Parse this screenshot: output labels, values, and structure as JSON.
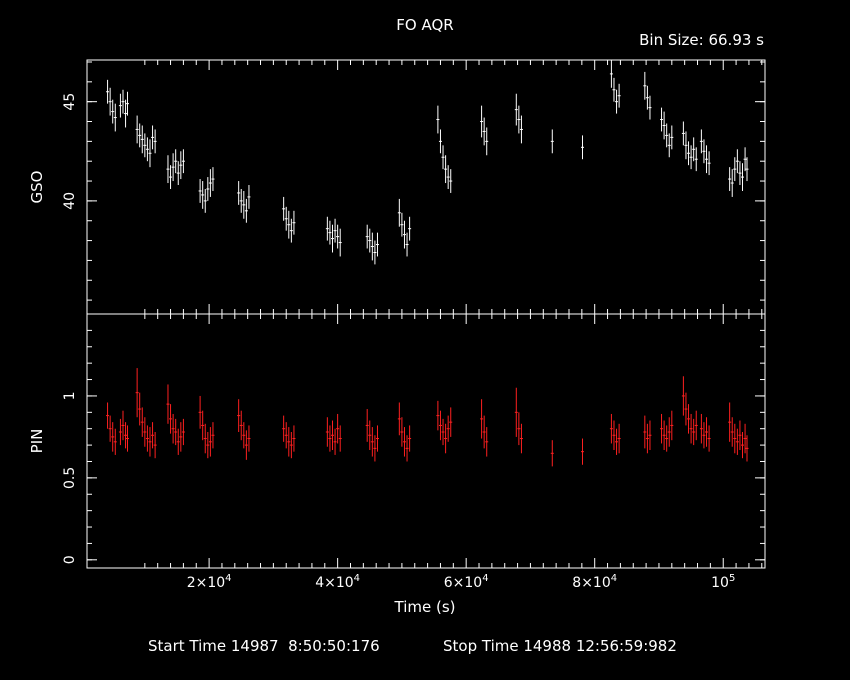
{
  "title": "FO AQR",
  "bin_size": "Bin Size: 66.93 s",
  "footer": {
    "start": "Start Time 14987  8:50:50:176",
    "stop": "Stop Time 14988 12:56:59:982"
  },
  "colors": {
    "gso": "#ffffff",
    "pin": "#ff2020",
    "axes": "#ffffff",
    "background": "#000000"
  },
  "chart_data": [
    {
      "type": "scatter",
      "panel": "top",
      "ylabel": "GSO",
      "xlabel": "Time (s)",
      "xlim": [
        1000,
        106500
      ],
      "ylim": [
        34.3,
        47.1
      ],
      "yticks": [
        40,
        45
      ],
      "ytick_labels": [
        "40",
        "45"
      ],
      "series": [
        {
          "points": [
            [
              4200,
              45.5
            ],
            [
              4600,
              45.0
            ],
            [
              5000,
              44.5
            ],
            [
              5400,
              44.2
            ],
            [
              6200,
              44.8
            ],
            [
              6600,
              45.0
            ],
            [
              7000,
              44.4
            ],
            [
              7300,
              44.9
            ],
            [
              8800,
              43.6
            ],
            [
              9200,
              43.3
            ],
            [
              9600,
              43.1
            ],
            [
              10000,
              42.8
            ],
            [
              10400,
              42.6
            ],
            [
              10800,
              42.4
            ],
            [
              11200,
              43.2
            ],
            [
              11600,
              43.0
            ],
            [
              13600,
              41.6
            ],
            [
              14000,
              41.2
            ],
            [
              14400,
              41.7
            ],
            [
              14800,
              42.0
            ],
            [
              15200,
              41.4
            ],
            [
              15600,
              41.8
            ],
            [
              16000,
              42.0
            ],
            [
              18600,
              40.5
            ],
            [
              19000,
              40.3
            ],
            [
              19400,
              40.0
            ],
            [
              19800,
              40.6
            ],
            [
              20200,
              40.9
            ],
            [
              20600,
              41.1
            ],
            [
              24600,
              40.4
            ],
            [
              25000,
              40.0
            ],
            [
              25400,
              39.8
            ],
            [
              25800,
              39.5
            ],
            [
              26200,
              40.2
            ],
            [
              31600,
              39.6
            ],
            [
              32000,
              39.1
            ],
            [
              32400,
              38.8
            ],
            [
              32800,
              38.5
            ],
            [
              33200,
              38.9
            ],
            [
              38400,
              38.6
            ],
            [
              38800,
              38.4
            ],
            [
              39200,
              38.1
            ],
            [
              39600,
              38.5
            ],
            [
              40000,
              38.2
            ],
            [
              40400,
              37.9
            ],
            [
              44600,
              38.2
            ],
            [
              45000,
              38.0
            ],
            [
              45400,
              37.7
            ],
            [
              45800,
              37.4
            ],
            [
              46200,
              37.8
            ],
            [
              49600,
              39.4
            ],
            [
              50000,
              38.8
            ],
            [
              50400,
              38.3
            ],
            [
              50800,
              37.8
            ],
            [
              51200,
              38.6
            ],
            [
              55600,
              44.1
            ],
            [
              56000,
              43.0
            ],
            [
              56400,
              42.2
            ],
            [
              56800,
              41.6
            ],
            [
              57200,
              41.2
            ],
            [
              57600,
              41.0
            ],
            [
              62400,
              44.0
            ],
            [
              62800,
              43.5
            ],
            [
              63200,
              43.0
            ],
            [
              67800,
              44.6
            ],
            [
              68200,
              44.1
            ],
            [
              68600,
              43.6
            ],
            [
              73400,
              43.0
            ],
            [
              78100,
              42.7
            ],
            [
              82600,
              46.4
            ],
            [
              83000,
              45.6
            ],
            [
              83400,
              45.0
            ],
            [
              83800,
              45.3
            ],
            [
              87800,
              45.8
            ],
            [
              88200,
              45.2
            ],
            [
              88600,
              44.7
            ],
            [
              90400,
              44.1
            ],
            [
              90800,
              43.8
            ],
            [
              91200,
              43.3
            ],
            [
              91600,
              42.8
            ],
            [
              92000,
              43.2
            ],
            [
              93800,
              43.4
            ],
            [
              94200,
              42.8
            ],
            [
              94600,
              42.4
            ],
            [
              95000,
              42.2
            ],
            [
              95400,
              42.6
            ],
            [
              95800,
              42.1
            ],
            [
              96600,
              43.0
            ],
            [
              97000,
              42.5
            ],
            [
              97400,
              42.1
            ],
            [
              97800,
              41.9
            ],
            [
              101000,
              41.1
            ],
            [
              101400,
              40.9
            ],
            [
              101800,
              41.6
            ],
            [
              102200,
              42.0
            ],
            [
              102600,
              41.4
            ],
            [
              103000,
              41.2
            ],
            [
              103400,
              42.1
            ],
            [
              103700,
              41.6
            ]
          ],
          "errors": [
            0.6,
            0.7,
            0.6,
            0.7,
            0.6,
            0.6,
            0.7,
            0.6,
            0.7,
            0.6,
            0.7,
            0.6,
            0.6,
            0.7,
            0.6,
            0.6,
            0.7,
            0.6,
            0.7,
            0.6,
            0.6,
            0.7,
            0.6,
            0.6,
            0.7,
            0.6,
            0.6,
            0.7,
            0.6,
            0.6,
            0.6,
            0.7,
            0.6,
            0.6,
            0.6,
            0.6,
            0.7,
            0.6,
            0.6,
            0.6,
            0.6,
            0.7,
            0.6,
            0.6,
            0.7,
            0.6,
            0.6,
            0.7,
            0.6,
            0.6,
            0.7,
            0.6,
            0.7,
            0.6,
            0.6,
            0.7,
            0.6,
            0.6,
            0.7,
            0.6,
            0.6,
            0.8,
            0.7,
            0.7,
            0.8,
            0.7,
            0.7,
            0.6,
            0.6,
            0.7,
            0.6,
            0.6,
            0.6,
            0.7,
            0.6,
            0.6,
            0.6,
            0.7,
            0.6,
            0.6,
            0.6,
            0.6,
            0.7,
            0.6,
            0.6,
            0.6,
            0.6,
            0.6,
            0.6,
            0.7,
            0.6,
            0.6,
            0.7,
            0.6,
            0.6,
            0.6,
            0.7,
            0.6,
            0.6
          ]
        }
      ]
    },
    {
      "type": "scatter",
      "panel": "bottom",
      "ylabel": "PIN",
      "xlabel": "Time (s)",
      "xlim": [
        1000,
        106500
      ],
      "ylim": [
        -0.05,
        1.5
      ],
      "yticks": [
        0,
        0.5,
        1
      ],
      "ytick_labels": [
        "0",
        "0.5",
        "1"
      ],
      "xticks": [
        20000,
        40000,
        60000,
        80000,
        100000
      ],
      "xtick_labels": [
        [
          "2×10",
          "4"
        ],
        [
          "4×10",
          "4"
        ],
        [
          "6×10",
          "4"
        ],
        [
          "8×10",
          "4"
        ],
        [
          "10",
          "5"
        ]
      ],
      "series": [
        {
          "points": [
            [
              4200,
              0.88
            ],
            [
              4600,
              0.8
            ],
            [
              5000,
              0.75
            ],
            [
              5400,
              0.72
            ],
            [
              6200,
              0.78
            ],
            [
              6600,
              0.82
            ],
            [
              7000,
              0.76
            ],
            [
              7300,
              0.74
            ],
            [
              8800,
              1.02
            ],
            [
              9200,
              0.92
            ],
            [
              9600,
              0.84
            ],
            [
              10000,
              0.78
            ],
            [
              10400,
              0.74
            ],
            [
              10800,
              0.72
            ],
            [
              11200,
              0.76
            ],
            [
              11600,
              0.7
            ],
            [
              13600,
              0.95
            ],
            [
              14000,
              0.86
            ],
            [
              14400,
              0.8
            ],
            [
              14800,
              0.78
            ],
            [
              15200,
              0.72
            ],
            [
              15600,
              0.75
            ],
            [
              16000,
              0.78
            ],
            [
              18600,
              0.9
            ],
            [
              19000,
              0.82
            ],
            [
              19400,
              0.74
            ],
            [
              19800,
              0.7
            ],
            [
              20200,
              0.72
            ],
            [
              20600,
              0.76
            ],
            [
              24600,
              0.88
            ],
            [
              25000,
              0.82
            ],
            [
              25400,
              0.76
            ],
            [
              25800,
              0.7
            ],
            [
              26200,
              0.74
            ],
            [
              31600,
              0.8
            ],
            [
              32000,
              0.76
            ],
            [
              32400,
              0.72
            ],
            [
              32800,
              0.7
            ],
            [
              33200,
              0.74
            ],
            [
              38400,
              0.78
            ],
            [
              38800,
              0.74
            ],
            [
              39200,
              0.76
            ],
            [
              39600,
              0.72
            ],
            [
              40000,
              0.8
            ],
            [
              40400,
              0.74
            ],
            [
              44600,
              0.82
            ],
            [
              45000,
              0.76
            ],
            [
              45400,
              0.72
            ],
            [
              45800,
              0.68
            ],
            [
              46200,
              0.74
            ],
            [
              49600,
              0.86
            ],
            [
              50000,
              0.78
            ],
            [
              50400,
              0.72
            ],
            [
              50800,
              0.68
            ],
            [
              51200,
              0.74
            ],
            [
              55600,
              0.88
            ],
            [
              56000,
              0.82
            ],
            [
              56400,
              0.78
            ],
            [
              56800,
              0.74
            ],
            [
              57200,
              0.8
            ],
            [
              57600,
              0.84
            ],
            [
              62400,
              0.86
            ],
            [
              62800,
              0.78
            ],
            [
              63200,
              0.72
            ],
            [
              67800,
              0.9
            ],
            [
              68200,
              0.8
            ],
            [
              68600,
              0.74
            ],
            [
              73400,
              0.65
            ],
            [
              78100,
              0.66
            ],
            [
              82600,
              0.8
            ],
            [
              83000,
              0.76
            ],
            [
              83400,
              0.72
            ],
            [
              83800,
              0.74
            ],
            [
              87800,
              0.78
            ],
            [
              88200,
              0.74
            ],
            [
              88600,
              0.76
            ],
            [
              90400,
              0.8
            ],
            [
              90800,
              0.76
            ],
            [
              91200,
              0.74
            ],
            [
              91600,
              0.78
            ],
            [
              92000,
              0.82
            ],
            [
              93800,
              1.0
            ],
            [
              94200,
              0.92
            ],
            [
              94600,
              0.86
            ],
            [
              95000,
              0.8
            ],
            [
              95400,
              0.78
            ],
            [
              95800,
              0.82
            ],
            [
              96600,
              0.8
            ],
            [
              97000,
              0.76
            ],
            [
              97400,
              0.78
            ],
            [
              97800,
              0.74
            ],
            [
              101000,
              0.84
            ],
            [
              101400,
              0.78
            ],
            [
              101800,
              0.74
            ],
            [
              102200,
              0.72
            ],
            [
              102600,
              0.76
            ],
            [
              103000,
              0.7
            ],
            [
              103400,
              0.74
            ],
            [
              103700,
              0.68
            ]
          ],
          "errors": [
            0.08,
            0.08,
            0.09,
            0.08,
            0.08,
            0.09,
            0.08,
            0.08,
            0.15,
            0.1,
            0.09,
            0.09,
            0.08,
            0.09,
            0.08,
            0.08,
            0.12,
            0.09,
            0.09,
            0.08,
            0.08,
            0.09,
            0.08,
            0.1,
            0.09,
            0.09,
            0.08,
            0.09,
            0.08,
            0.1,
            0.09,
            0.08,
            0.09,
            0.08,
            0.08,
            0.08,
            0.09,
            0.08,
            0.08,
            0.09,
            0.08,
            0.09,
            0.08,
            0.09,
            0.08,
            0.1,
            0.09,
            0.09,
            0.08,
            0.08,
            0.1,
            0.09,
            0.09,
            0.08,
            0.08,
            0.09,
            0.09,
            0.08,
            0.09,
            0.08,
            0.09,
            0.12,
            0.1,
            0.09,
            0.15,
            0.1,
            0.09,
            0.08,
            0.08,
            0.09,
            0.09,
            0.08,
            0.09,
            0.1,
            0.09,
            0.09,
            0.09,
            0.09,
            0.08,
            0.09,
            0.09,
            0.12,
            0.1,
            0.09,
            0.09,
            0.08,
            0.09,
            0.09,
            0.08,
            0.09,
            0.08,
            0.12,
            0.09,
            0.09,
            0.08,
            0.09,
            0.08,
            0.09,
            0.08
          ]
        }
      ]
    }
  ]
}
